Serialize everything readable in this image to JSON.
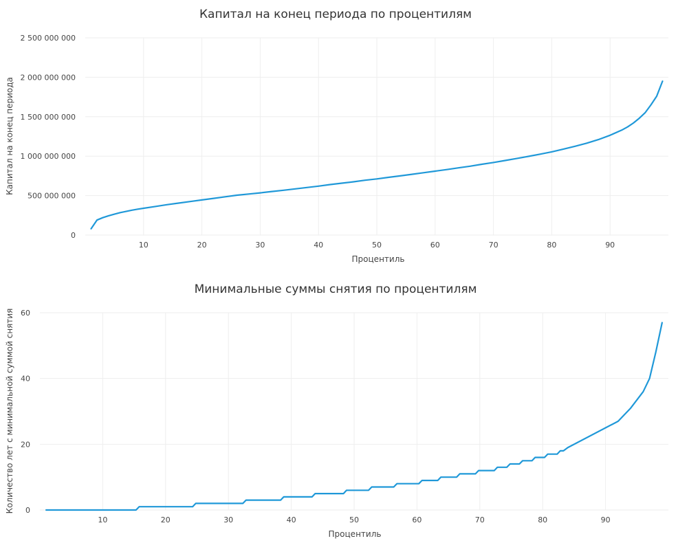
{
  "chart_data": [
    {
      "type": "line",
      "title": "Капитал на конец периода по процентилям",
      "xlabel": "Процентиль",
      "ylabel": "Капитал на конец периода",
      "xlim": [
        0,
        100
      ],
      "ylim": [
        0,
        2500000000
      ],
      "grid": true,
      "color": "#1f98d8",
      "x_ticks": [
        10,
        20,
        30,
        40,
        50,
        60,
        70,
        80,
        90
      ],
      "y_ticks": [
        0,
        500000000,
        1000000000,
        1500000000,
        2000000000,
        2500000000
      ],
      "y_tick_labels": [
        "0",
        "500 000 000",
        "1 000 000 000",
        "1 500 000 000",
        "2 000 000 000",
        "2 500 000 000"
      ],
      "series": [
        {
          "x": [
            1,
            2,
            3,
            4,
            5,
            6,
            7,
            8,
            9,
            10,
            12,
            14,
            16,
            18,
            20,
            22,
            24,
            26,
            28,
            30,
            32,
            34,
            36,
            38,
            40,
            42,
            44,
            46,
            48,
            50,
            52,
            54,
            56,
            58,
            60,
            62,
            64,
            66,
            68,
            70,
            72,
            74,
            76,
            78,
            80,
            82,
            84,
            86,
            88,
            90,
            92,
            93,
            94,
            95,
            96,
            97,
            98,
            99
          ],
          "y": [
            80000000,
            190000000,
            220000000,
            245000000,
            265000000,
            285000000,
            300000000,
            315000000,
            328000000,
            340000000,
            362000000,
            385000000,
            405000000,
            425000000,
            445000000,
            465000000,
            485000000,
            505000000,
            520000000,
            535000000,
            552000000,
            568000000,
            585000000,
            603000000,
            620000000,
            640000000,
            658000000,
            675000000,
            695000000,
            712000000,
            732000000,
            750000000,
            770000000,
            790000000,
            810000000,
            830000000,
            852000000,
            873000000,
            897000000,
            920000000,
            945000000,
            970000000,
            997000000,
            1025000000,
            1055000000,
            1090000000,
            1125000000,
            1165000000,
            1210000000,
            1265000000,
            1330000000,
            1370000000,
            1420000000,
            1480000000,
            1550000000,
            1650000000,
            1760000000,
            1950000000
          ]
        }
      ]
    },
    {
      "type": "line",
      "title": "Минимальные суммы снятия по процентилям",
      "xlabel": "Процентиль",
      "ylabel": "Количество лет с минимальной суммой снятия",
      "xlim": [
        0,
        100
      ],
      "ylim": [
        0,
        60
      ],
      "grid": true,
      "color": "#1f98d8",
      "x_ticks": [
        10,
        20,
        30,
        40,
        50,
        60,
        70,
        80,
        90
      ],
      "y_ticks": [
        0,
        20,
        40,
        60
      ],
      "y_tick_labels": [
        "0",
        "20",
        "40",
        "60"
      ],
      "series": [
        {
          "x": [
            1,
            15.3,
            15.8,
            24.3,
            24.8,
            32.3,
            32.8,
            38.3,
            38.8,
            43.3,
            43.8,
            48.3,
            48.8,
            52.3,
            52.8,
            56.3,
            56.8,
            60.3,
            60.8,
            63.3,
            63.8,
            66.3,
            66.8,
            69.3,
            69.8,
            72.3,
            72.8,
            74.3,
            74.8,
            76.3,
            76.8,
            78.3,
            78.8,
            80.3,
            80.8,
            82.3,
            82.8,
            83.3,
            84,
            92,
            94,
            96,
            97,
            98,
            99
          ],
          "y": [
            0,
            0,
            1,
            1,
            2,
            2,
            3,
            3,
            4,
            4,
            5,
            5,
            6,
            6,
            7,
            7,
            8,
            8,
            9,
            9,
            10,
            10,
            11,
            11,
            12,
            12,
            13,
            13,
            14,
            14,
            15,
            15,
            16,
            16,
            17,
            17,
            18,
            18,
            19,
            27,
            31,
            36,
            40,
            48,
            57
          ]
        }
      ]
    }
  ]
}
